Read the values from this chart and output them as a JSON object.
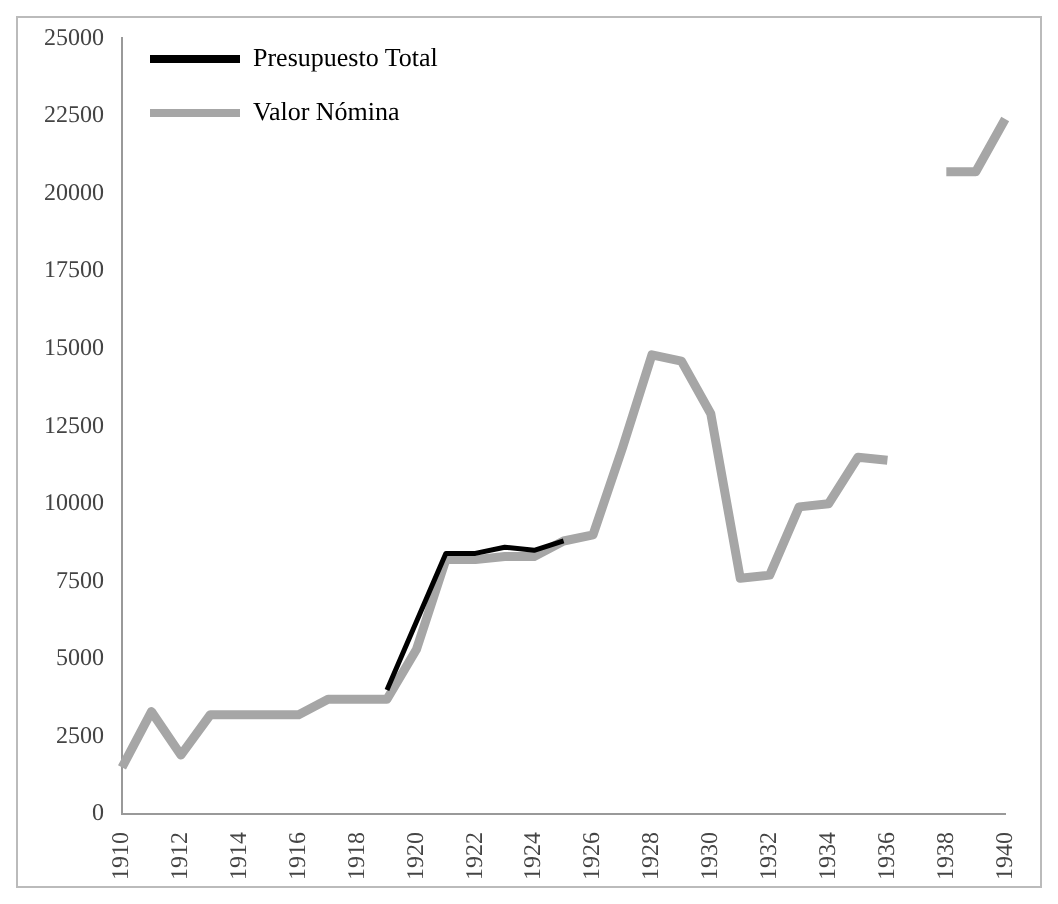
{
  "chart_data": {
    "type": "line",
    "categories": [
      "1910",
      null,
      "1912",
      null,
      "1914",
      null,
      "1916",
      null,
      "1918",
      null,
      "1920",
      null,
      "1922",
      null,
      "1924",
      null,
      "1926",
      null,
      "1928",
      null,
      "1930",
      null,
      "1932",
      null,
      "1934",
      null,
      "1936",
      null,
      "1938",
      null,
      "1940"
    ],
    "series": [
      {
        "name": "Presupuesto Total",
        "color": "#000000",
        "values": [
          null,
          null,
          null,
          null,
          null,
          null,
          null,
          null,
          null,
          4000,
          6200,
          8400,
          8400,
          8600,
          8500,
          8800,
          null,
          null,
          null,
          null,
          null,
          null,
          null,
          null,
          null,
          null,
          null,
          null,
          null,
          null,
          null
        ]
      },
      {
        "name": "Valor Nómina",
        "color": "#a6a6a6",
        "values": [
          1500,
          3300,
          1900,
          3200,
          3200,
          3200,
          3200,
          3700,
          3700,
          3700,
          5300,
          8200,
          8200,
          8300,
          8300,
          8800,
          9000,
          11800,
          14800,
          14600,
          12900,
          7600,
          7700,
          9900,
          10000,
          11500,
          11400,
          null,
          20700,
          20700,
          22400
        ]
      }
    ],
    "ylim": [
      0,
      25000
    ],
    "yticks": [
      0,
      2500,
      5000,
      7500,
      10000,
      12500,
      15000,
      17500,
      20000,
      22500,
      25000
    ],
    "grid": false,
    "legend": "top left",
    "marker": "none",
    "line_style": "solid"
  }
}
